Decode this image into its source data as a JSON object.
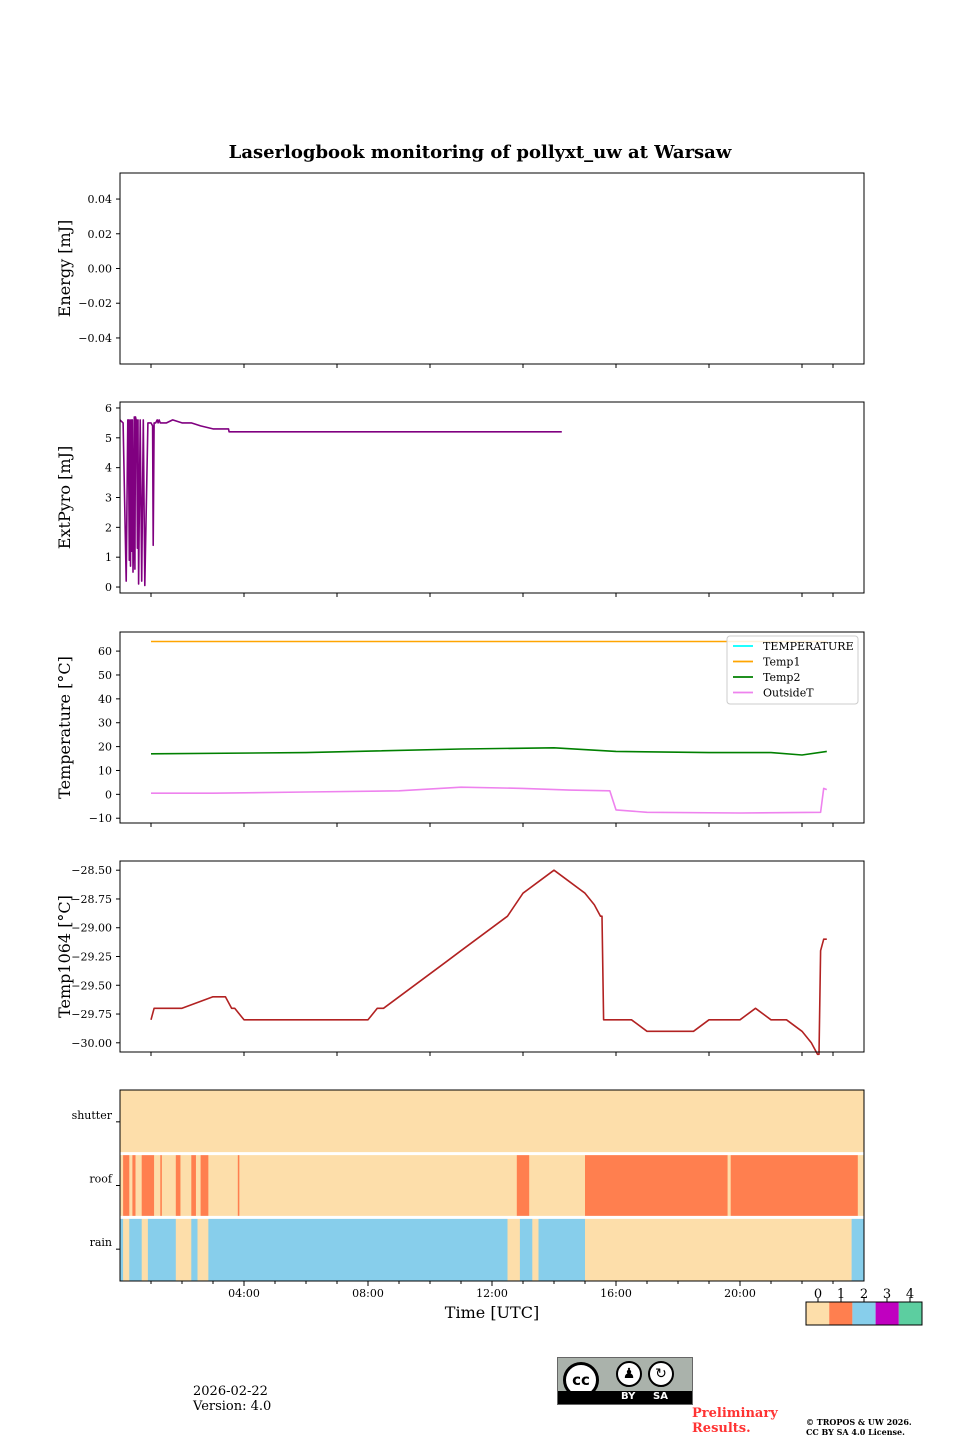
{
  "title": "Laserlogbook monitoring of pollyxt_uw at Warsaw",
  "footer": {
    "date": "2026-02-22",
    "version": "Version: 4.0",
    "preliminary": "Preliminary Results.",
    "copyright_line1": "© TROPOS & UW 2026.",
    "copyright_line2": "CC BY SA 4.0 License.",
    "license_badge_by": "BY",
    "license_badge_sa": "SA",
    "license_badge_cc": "cc"
  },
  "colors": {
    "purple": "#800080",
    "orange": "#ffa500",
    "cyan": "#00ffff",
    "green": "#008000",
    "violet": "#ee82ee",
    "firebrick": "#b22222",
    "red_text": "#ff3333"
  },
  "chart_data": [
    {
      "type": "line",
      "id": "energy",
      "ylabel": "Energy [mJ]",
      "ylim": [
        -0.055,
        0.055
      ],
      "yticks": [
        0.04,
        0.02,
        0.0,
        -0.02,
        -0.04
      ],
      "yticklabels": [
        "0.04",
        "0.02",
        "0.00",
        "−0.02",
        "−0.04"
      ],
      "series": []
    },
    {
      "type": "line",
      "id": "extpyro",
      "ylabel": "ExtPyro [mJ]",
      "ylim": [
        -0.2,
        6.2
      ],
      "yticks": [
        0,
        1,
        2,
        3,
        4,
        5,
        6
      ],
      "yticklabels": [
        "0",
        "1",
        "2",
        "3",
        "4",
        "5",
        "6"
      ],
      "series": [
        {
          "name": "ExtPyro",
          "color": "#800080",
          "x": [
            0.0,
            0.1,
            0.2,
            0.25,
            0.27,
            0.3,
            0.32,
            0.34,
            0.36,
            0.38,
            0.4,
            0.42,
            0.44,
            0.46,
            0.48,
            0.5,
            0.52,
            0.54,
            0.56,
            0.58,
            0.6,
            0.65,
            0.7,
            0.75,
            0.8,
            0.9,
            1.0,
            1.05,
            1.07,
            1.1,
            1.15,
            1.2,
            1.23,
            1.26,
            1.3,
            1.35,
            1.5,
            1.7,
            2.0,
            2.3,
            2.6,
            3.0,
            3.3,
            3.5,
            3.52,
            3.54,
            3.6,
            4.0,
            4.5,
            5.0,
            5.5,
            6.0,
            6.5,
            7.0,
            7.5,
            8.0,
            8.5,
            9.0,
            9.5,
            10.0,
            10.5,
            11.0,
            11.5,
            12.0,
            12.5,
            13.0,
            13.2,
            13.4,
            13.5,
            13.6,
            13.7,
            13.8,
            13.9,
            14.0,
            14.1,
            14.2,
            14.25
          ],
          "y": [
            5.6,
            5.5,
            0.2,
            5.6,
            5.6,
            0.9,
            5.6,
            0.7,
            5.6,
            1.2,
            5.6,
            0.5,
            1.5,
            5.7,
            0.6,
            5.7,
            5.6,
            5.6,
            1.3,
            5.6,
            0.1,
            5.6,
            0.2,
            5.6,
            0.05,
            5.5,
            5.5,
            5.4,
            1.4,
            5.5,
            5.5,
            5.6,
            5.5,
            5.6,
            5.5,
            5.5,
            5.5,
            5.6,
            5.5,
            5.5,
            5.4,
            5.3,
            5.3,
            5.3,
            5.2,
            5.2,
            5.2,
            5.2,
            5.2,
            5.2,
            5.2,
            5.2,
            5.2,
            5.2,
            5.2,
            5.2,
            5.2,
            5.2,
            5.2,
            5.2,
            5.2,
            5.2,
            5.2,
            5.2,
            5.2,
            5.2,
            5.2,
            5.2,
            5.2,
            5.2,
            5.2,
            5.2,
            5.2,
            5.2,
            5.2,
            5.2,
            5.2
          ]
        }
      ]
    },
    {
      "type": "line",
      "id": "temperature",
      "ylabel": "Temperature [°C]",
      "ylim": [
        -12,
        68
      ],
      "yticks": [
        -10,
        0,
        10,
        20,
        30,
        40,
        50,
        60
      ],
      "yticklabels": [
        "−10",
        "0",
        "10",
        "20",
        "30",
        "40",
        "50",
        "60"
      ],
      "legend_position": "top-right",
      "series": [
        {
          "name": "TEMPERATURE",
          "color": "#00ffff",
          "x": [],
          "y": []
        },
        {
          "name": "Temp1",
          "color": "#ffa500",
          "x": [
            1.0,
            22.8
          ],
          "y": [
            64.0,
            64.0
          ]
        },
        {
          "name": "Temp2",
          "color": "#008000",
          "x": [
            1.0,
            6.0,
            11.0,
            14.0,
            16.0,
            19.0,
            21.0,
            22.0,
            22.8
          ],
          "y": [
            17.0,
            17.5,
            19.0,
            19.5,
            18.0,
            17.5,
            17.5,
            16.5,
            18.0
          ]
        },
        {
          "name": "OutsideT",
          "color": "#ee82ee",
          "x": [
            1.0,
            3.0,
            6.0,
            9.0,
            11.0,
            13.0,
            14.5,
            15.8,
            16.0,
            17.0,
            20.0,
            22.6,
            22.7,
            22.8
          ],
          "y": [
            0.5,
            0.5,
            1.0,
            1.5,
            3.0,
            2.5,
            1.8,
            1.5,
            -6.5,
            -7.5,
            -7.8,
            -7.5,
            2.5,
            2.0
          ]
        }
      ]
    },
    {
      "type": "line",
      "id": "temp1064",
      "ylabel": "Temp1064 [°C]",
      "ylim": [
        -30.08,
        -28.42
      ],
      "yticks": [
        -28.5,
        -28.75,
        -29.0,
        -29.25,
        -29.5,
        -29.75,
        -30.0
      ],
      "yticklabels": [
        "−28.50",
        "−28.75",
        "−29.00",
        "−29.25",
        "−29.50",
        "−29.75",
        "−30.00"
      ],
      "series": [
        {
          "name": "Temp1064",
          "color": "#b22222",
          "x": [
            1.0,
            1.1,
            2.0,
            3.0,
            3.4,
            3.6,
            3.7,
            4.0,
            5.0,
            6.0,
            7.0,
            8.0,
            8.3,
            8.5,
            9.0,
            9.5,
            10.0,
            10.5,
            11.0,
            11.5,
            12.0,
            12.5,
            13.0,
            13.5,
            14.0,
            14.5,
            15.0,
            15.3,
            15.5,
            15.55,
            15.6,
            16.0,
            16.5,
            17.0,
            17.5,
            18.0,
            18.5,
            19.0,
            19.5,
            20.0,
            20.5,
            21.0,
            21.5,
            22.0,
            22.3,
            22.5,
            22.55,
            22.6,
            22.7,
            22.8
          ],
          "y": [
            -29.8,
            -29.7,
            -29.7,
            -29.6,
            -29.6,
            -29.7,
            -29.7,
            -29.8,
            -29.8,
            -29.8,
            -29.8,
            -29.8,
            -29.7,
            -29.7,
            -29.6,
            -29.5,
            -29.4,
            -29.3,
            -29.2,
            -29.1,
            -29.0,
            -28.9,
            -28.7,
            -28.6,
            -28.5,
            -28.6,
            -28.7,
            -28.8,
            -28.9,
            -28.9,
            -29.8,
            -29.8,
            -29.8,
            -29.9,
            -29.9,
            -29.9,
            -29.9,
            -29.8,
            -29.8,
            -29.8,
            -29.7,
            -29.8,
            -29.8,
            -29.9,
            -30.0,
            -30.1,
            -30.1,
            -29.2,
            -29.1,
            -29.1
          ]
        }
      ]
    },
    {
      "type": "heatmap",
      "id": "status",
      "rows": [
        "shutter",
        "roof",
        "rain"
      ],
      "xlabel": "Time [UTC]",
      "xlim": [
        0,
        24
      ],
      "xticks": [
        4,
        8,
        12,
        16,
        20
      ],
      "xticklabels": [
        "04:00",
        "08:00",
        "12:00",
        "16:00",
        "20:00"
      ],
      "colorbar": {
        "labels": [
          "0",
          "1",
          "2",
          "3",
          "4"
        ],
        "colors": [
          "#fddeaa",
          "#ff7f4f",
          "#87ceeb",
          "#c000c0",
          "#5ccea0"
        ]
      },
      "segments": {
        "shutter": [
          [
            0,
            24,
            0
          ]
        ],
        "roof": [
          [
            0,
            0.1,
            0
          ],
          [
            0.1,
            0.3,
            1
          ],
          [
            0.3,
            0.4,
            0
          ],
          [
            0.4,
            0.5,
            1
          ],
          [
            0.5,
            0.7,
            0
          ],
          [
            0.7,
            1.1,
            1
          ],
          [
            1.1,
            1.3,
            0
          ],
          [
            1.3,
            1.35,
            1
          ],
          [
            1.35,
            1.8,
            0
          ],
          [
            1.8,
            1.95,
            1
          ],
          [
            1.95,
            2.3,
            0
          ],
          [
            2.3,
            2.45,
            1
          ],
          [
            2.45,
            2.6,
            0
          ],
          [
            2.6,
            2.85,
            1
          ],
          [
            2.85,
            3.8,
            0
          ],
          [
            3.8,
            3.85,
            1
          ],
          [
            3.85,
            12.8,
            0
          ],
          [
            12.8,
            13.2,
            1
          ],
          [
            13.2,
            15.0,
            0
          ],
          [
            15.0,
            19.6,
            1
          ],
          [
            19.6,
            19.7,
            0
          ],
          [
            19.7,
            23.8,
            1
          ],
          [
            23.8,
            24,
            0
          ]
        ],
        "rain": [
          [
            0,
            0.1,
            2
          ],
          [
            0.1,
            0.3,
            0
          ],
          [
            0.3,
            0.7,
            2
          ],
          [
            0.7,
            0.9,
            0
          ],
          [
            0.9,
            1.8,
            2
          ],
          [
            1.8,
            2.3,
            0
          ],
          [
            2.3,
            2.5,
            2
          ],
          [
            2.5,
            2.85,
            0
          ],
          [
            2.85,
            12.5,
            2
          ],
          [
            12.5,
            12.9,
            0
          ],
          [
            12.9,
            13.3,
            2
          ],
          [
            13.3,
            13.5,
            0
          ],
          [
            13.5,
            15.0,
            2
          ],
          [
            15.0,
            23.6,
            0
          ],
          [
            23.6,
            24,
            2
          ]
        ]
      }
    }
  ]
}
